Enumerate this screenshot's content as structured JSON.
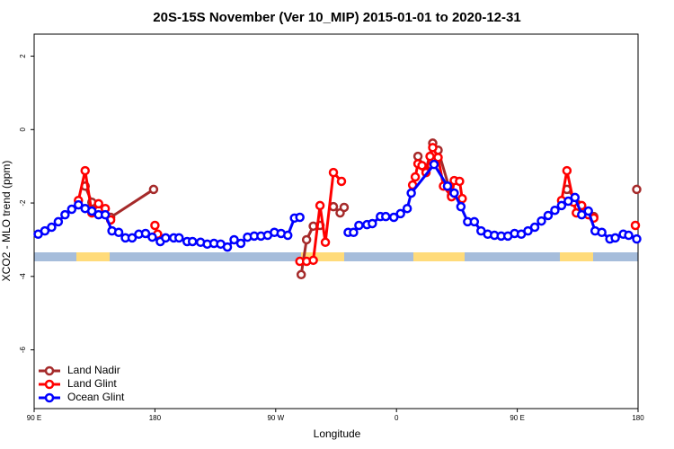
{
  "chart_data": {
    "type": "line",
    "title": "20S-15S November (Ver 10_MIP)   2015-01-01 to 2020-12-31",
    "x_label": "Longitude",
    "y_label": "XCO2 - MLO trend (ppm)",
    "xlim": [
      90,
      540
    ],
    "ylim": [
      -7.6,
      2.6
    ],
    "xticks": [
      {
        "value": 90,
        "label": "90 E"
      },
      {
        "value": 180,
        "label": "180"
      },
      {
        "value": 270,
        "label": "90 W"
      },
      {
        "value": 360,
        "label": "0"
      },
      {
        "value": 450,
        "label": "90 E"
      },
      {
        "value": 540,
        "label": "180"
      }
    ],
    "yticks": [
      2,
      0,
      -2,
      -4,
      -6
    ],
    "legend": "bottomleft",
    "series": [
      {
        "name": "Land Nadir",
        "color": "#a52a2a",
        "x": [
          128,
          133,
          138,
          147,
          179,
          null,
          289,
          293,
          298,
          303,
          null,
          313,
          318,
          321,
          null,
          376,
          382,
          387,
          391,
          401,
          null,
          487,
          507,
          null,
          539
        ],
        "values": [
          -1.54,
          -1.98,
          -2.2,
          -2.39,
          -1.63,
          null,
          -3.95,
          -3.0,
          -2.63,
          -2.61,
          null,
          -2.1,
          -2.27,
          -2.12,
          null,
          -0.73,
          -1.1,
          -0.37,
          -0.56,
          -1.8,
          null,
          -1.63,
          -2.37,
          null,
          -1.63
        ]
      },
      {
        "name": "Land Glint",
        "color": "#ff0000",
        "x": [
          123,
          128,
          133,
          138,
          143,
          147,
          null,
          180,
          182,
          null,
          288,
          293,
          298,
          303,
          307,
          313,
          319,
          null,
          372,
          374,
          376,
          379,
          382,
          385,
          387,
          391,
          395,
          401,
          403,
          407,
          409,
          null,
          483,
          487,
          492,
          494,
          498,
          503,
          507,
          null,
          538
        ],
        "values": [
          -1.93,
          -1.12,
          -2.27,
          -2.02,
          -2.15,
          -2.46,
          null,
          -2.61,
          -2.85,
          null,
          -3.59,
          -3.59,
          -3.56,
          -2.07,
          -3.07,
          -1.17,
          -1.41,
          null,
          -1.51,
          -1.29,
          -0.93,
          -0.98,
          -1.17,
          -0.73,
          -0.49,
          -0.76,
          -1.54,
          -1.83,
          -1.39,
          -1.41,
          -1.88,
          null,
          -1.93,
          -1.12,
          -1.98,
          -2.27,
          -2.07,
          -2.32,
          -2.41,
          null,
          -2.61
        ]
      },
      {
        "name": "Ocean Glint",
        "color": "#0000ff",
        "x": [
          93,
          98,
          103,
          108,
          113,
          118,
          123,
          128,
          133,
          138,
          143,
          148,
          153,
          158,
          163,
          168,
          173,
          178,
          184,
          188,
          194,
          198,
          204,
          208,
          214,
          219,
          224,
          229,
          234,
          239,
          244,
          249,
          254,
          259,
          264,
          269,
          274,
          279,
          284,
          288,
          null,
          324,
          328,
          332,
          338,
          342,
          348,
          352,
          358,
          363,
          368,
          371,
          388,
          398,
          403,
          408,
          413,
          418,
          423,
          428,
          433,
          438,
          443,
          448,
          453,
          458,
          463,
          468,
          473,
          478,
          483,
          488,
          493,
          498,
          503,
          508,
          513,
          519,
          523,
          529,
          533,
          539
        ],
        "values": [
          -2.85,
          -2.76,
          -2.66,
          -2.51,
          -2.32,
          -2.17,
          -2.05,
          -2.15,
          -2.22,
          -2.32,
          -2.32,
          -2.76,
          -2.8,
          -2.95,
          -2.95,
          -2.85,
          -2.83,
          -2.93,
          -3.05,
          -2.95,
          -2.95,
          -2.95,
          -3.05,
          -3.05,
          -3.07,
          -3.12,
          -3.1,
          -3.12,
          -3.2,
          -3.0,
          -3.1,
          -2.93,
          -2.9,
          -2.9,
          -2.88,
          -2.8,
          -2.83,
          -2.88,
          -2.41,
          -2.39,
          null,
          -2.8,
          -2.8,
          -2.61,
          -2.59,
          -2.56,
          -2.37,
          -2.37,
          -2.39,
          -2.29,
          -2.15,
          -1.73,
          -0.95,
          -1.54,
          -1.73,
          -2.1,
          -2.51,
          -2.51,
          -2.76,
          -2.85,
          -2.88,
          -2.9,
          -2.9,
          -2.83,
          -2.85,
          -2.76,
          -2.66,
          -2.49,
          -2.34,
          -2.2,
          -2.07,
          -1.95,
          -1.85,
          -2.32,
          -2.22,
          -2.76,
          -2.8,
          -2.98,
          -2.95,
          -2.85,
          -2.88,
          -2.98
        ]
      }
    ]
  }
}
